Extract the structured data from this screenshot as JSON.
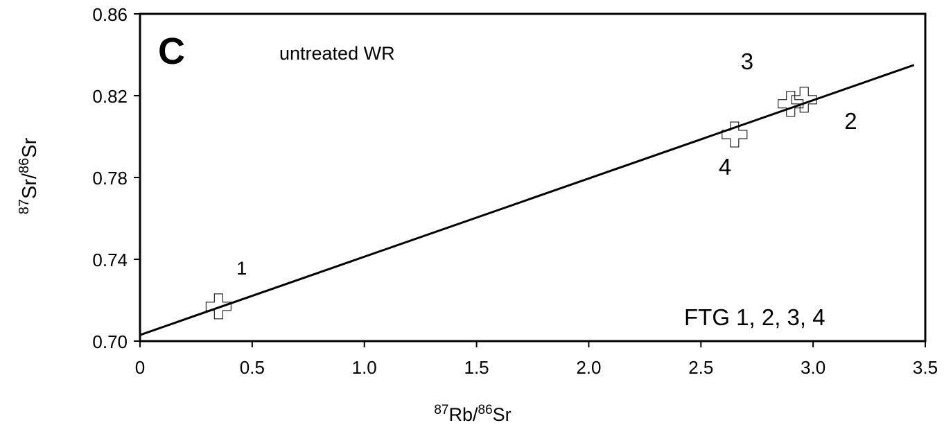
{
  "chart_data": {
    "type": "scatter",
    "panel_label": "C",
    "annotation": "untreated WR",
    "samples_label": "FTG 1,  2,  3,  4",
    "xlabel": {
      "sup1": "87",
      "mid": "Rb/",
      "sup2": "86",
      "end": "Sr"
    },
    "ylabel": {
      "sup1": "87",
      "mid": "Sr/",
      "sup2": "86",
      "end": "Sr"
    },
    "xlim": [
      0,
      3.5
    ],
    "ylim": [
      0.7,
      0.86
    ],
    "x_ticks": [
      0,
      0.5,
      1.0,
      1.5,
      2.0,
      2.5,
      3.0,
      3.5
    ],
    "x_tick_labels": [
      "0",
      "0.5",
      "1.0",
      "1.5",
      "2.0",
      "2.5",
      "3.0",
      "3.5"
    ],
    "y_ticks": [
      0.7,
      0.74,
      0.78,
      0.82,
      0.86
    ],
    "y_tick_labels": [
      "0.70",
      "0.74",
      "0.78",
      "0.82",
      "0.86"
    ],
    "grid": false,
    "points": [
      {
        "label": "1",
        "x": 0.35,
        "y": 0.717
      },
      {
        "label": "2",
        "x": 2.96,
        "y": 0.818
      },
      {
        "label": "3",
        "x": 2.9,
        "y": 0.816
      },
      {
        "label": "4",
        "x": 2.65,
        "y": 0.801
      }
    ],
    "regression_line": {
      "x": [
        0,
        3.45
      ],
      "y": [
        0.703,
        0.835
      ]
    }
  }
}
